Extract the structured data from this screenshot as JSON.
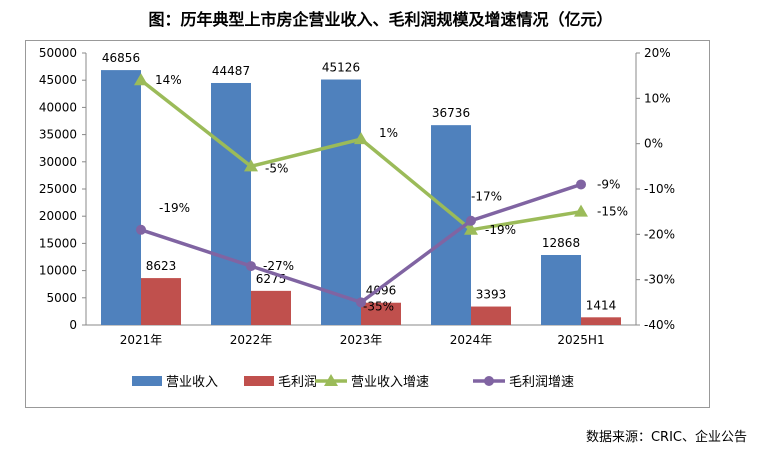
{
  "chart_data": {
    "type": "bar+line",
    "title": "图：历年典型上市房企营业收入、毛利润规模及增速情况（亿元）",
    "categories": [
      "2021年",
      "2022年",
      "2023年",
      "2024年",
      "2025H1"
    ],
    "series": [
      {
        "name": "营业收入",
        "type": "bar",
        "axis": "left",
        "color": "#4F81BD",
        "values": [
          46856,
          44487,
          45126,
          36736,
          12868
        ]
      },
      {
        "name": "毛利润",
        "type": "bar",
        "axis": "left",
        "color": "#C0504D",
        "values": [
          8623,
          6275,
          4096,
          3393,
          1414
        ]
      },
      {
        "name": "营业收入增速",
        "type": "line",
        "axis": "right",
        "marker": "triangle",
        "color": "#9BBB59",
        "values": [
          14,
          -5,
          1,
          -19,
          -15
        ]
      },
      {
        "name": "毛利润增速",
        "type": "line",
        "axis": "right",
        "marker": "circle",
        "color": "#8064A2",
        "values": [
          -19,
          -27,
          -35,
          -17,
          -9
        ]
      }
    ],
    "left_axis": {
      "min": 0,
      "max": 50000,
      "step": 5000
    },
    "right_axis": {
      "min": -40,
      "max": 20,
      "step": 10,
      "unit": "%"
    },
    "legend_position": "bottom",
    "grid": false
  },
  "source": "数据来源：CRIC、企业公告"
}
